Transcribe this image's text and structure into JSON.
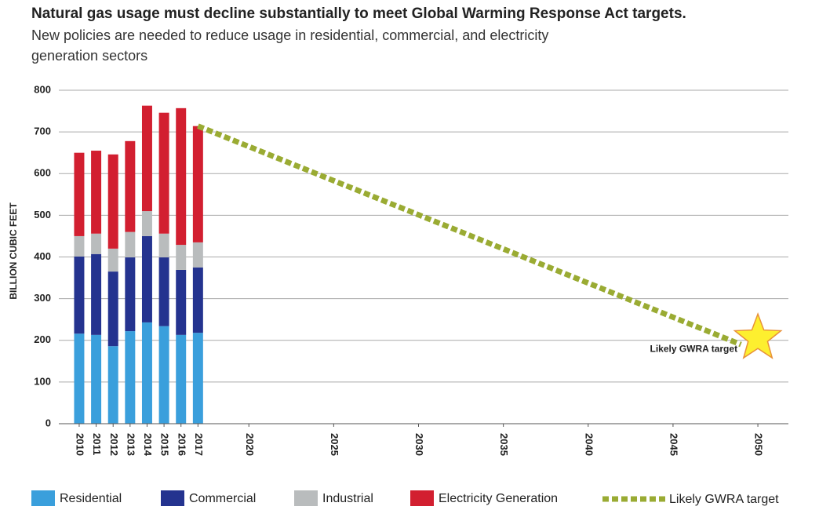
{
  "chart_data": {
    "type": "bar",
    "stacked": true,
    "title": "Natural gas usage must decline substantially to meet Global Warming Response Act targets.",
    "subtitle": [
      "New policies are needed to reduce usage in residential, commercial, and electricity",
      "generation sectors"
    ],
    "y_label": "BILLION  CUBIC FEET",
    "x": [
      2010,
      2011,
      2012,
      2013,
      2014,
      2015,
      2016,
      2017
    ],
    "series": [
      {
        "name": "Residential",
        "color": "#3a9fdc",
        "values": [
          216,
          213,
          186,
          222,
          243,
          234,
          213,
          218
        ]
      },
      {
        "name": "Commercial",
        "color": "#24338f",
        "values": [
          185,
          194,
          179,
          177,
          207,
          165,
          156,
          157
        ]
      },
      {
        "name": "Industrial",
        "color": "#b9bcbd",
        "values": [
          49,
          49,
          55,
          61,
          60,
          57,
          60,
          60
        ]
      },
      {
        "name": "Electricity Generation",
        "color": "#d21f30",
        "values": [
          200,
          199,
          226,
          218,
          253,
          290,
          328,
          279
        ]
      }
    ],
    "lines": [
      {
        "name": "Likely GWRA target",
        "color": "#9aab33",
        "dashed": true,
        "x": [
          2017,
          2049
        ],
        "values": [
          714,
          190
        ]
      }
    ],
    "marker": {
      "x": 2050,
      "value": 205,
      "color": "#fdef2f",
      "stroke": "#e8913a"
    },
    "annotation": {
      "text": "Likely GWRA target",
      "x": 2050,
      "value": 205
    },
    "xlim": [
      2008.8,
      2051.8
    ],
    "xticks": [
      2010,
      2011,
      2012,
      2013,
      2014,
      2015,
      2016,
      2017,
      2020,
      2025,
      2030,
      2035,
      2040,
      2045,
      2050
    ],
    "ylim": [
      0,
      800
    ],
    "yticks": [
      0,
      100,
      200,
      300,
      400,
      500,
      600,
      700,
      800
    ],
    "grid": true
  }
}
